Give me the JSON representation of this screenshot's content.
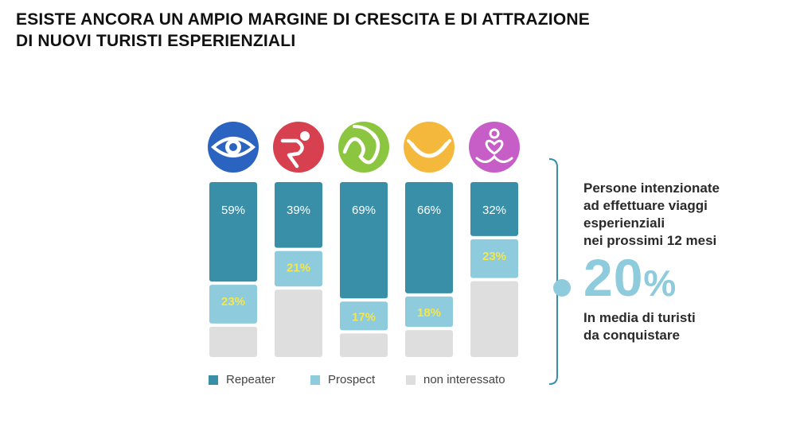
{
  "title": {
    "line1": "ESISTE ANCORA UN AMPIO MARGINE DI CRESCITA E DI ATTRAZIONE",
    "line2": "DI NUOVI TURISTI ESPERIENZIALI"
  },
  "colors": {
    "repeater": "#3a8fa8",
    "prospect": "#8ecbdc",
    "non_interessato": "#dedede",
    "prospect_label": "#f5e64a",
    "accent": "#8ecbdc",
    "bracket": "#3a8fa8"
  },
  "chart_data": {
    "type": "bar",
    "stacked": true,
    "orientation": "vertical",
    "categories": [
      "eye-icon",
      "running-figure-icon",
      "wave-icon",
      "smile-icon",
      "meditation-icon"
    ],
    "category_colors": [
      "#2b63c0",
      "#d6404f",
      "#8cc641",
      "#f4b93c",
      "#c75ec7"
    ],
    "series": [
      {
        "name": "Repeater",
        "values": [
          59,
          39,
          69,
          66,
          32
        ],
        "labels": [
          "59%",
          "39%",
          "69%",
          "66%",
          "32%"
        ]
      },
      {
        "name": "Prospect",
        "values": [
          23,
          21,
          17,
          18,
          23
        ],
        "labels": [
          "23%",
          "21%",
          "17%",
          "18%",
          "23%"
        ]
      },
      {
        "name": "non interessato",
        "values": [
          18,
          40,
          14,
          16,
          45
        ],
        "labels": [
          "",
          "",
          "",
          "",
          ""
        ]
      }
    ],
    "ylim": [
      0,
      100
    ],
    "legend_position": "bottom",
    "grid": false
  },
  "legend": [
    "Repeater",
    "Prospect",
    "non interessato"
  ],
  "side": {
    "intro": [
      "Persone intenzionate",
      "ad effettuare viaggi",
      "esperienziali",
      "nei prossimi 12 mesi"
    ],
    "big_value": "20",
    "big_unit": "%",
    "outro": [
      "In media di turisti",
      "da conquistare"
    ]
  }
}
